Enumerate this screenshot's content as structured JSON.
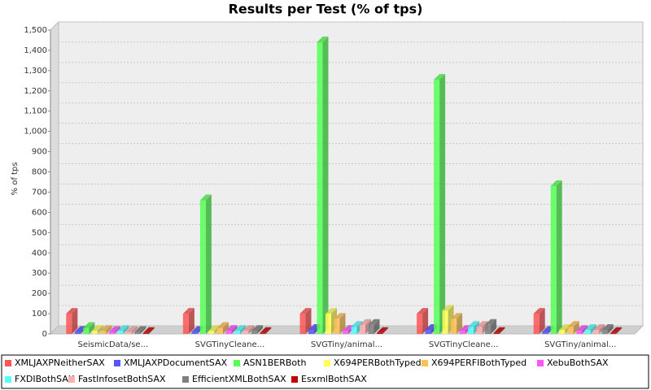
{
  "chart_data": {
    "type": "bar3d",
    "title": "Results per Test (% of tps)",
    "y_label": "% of tps",
    "categories": [
      "SeismicData/se...",
      "SVGTinyCleane...",
      "SVGTiny/animal...",
      "SVGTinyCleane...",
      "SVGTiny/animal..."
    ],
    "series": [
      {
        "name": "XMLJAXPNeitherSAX",
        "color": "#ff5555",
        "values": [
          100,
          100,
          100,
          100,
          100
        ]
      },
      {
        "name": "XMLJAXPDocumentSAX",
        "color": "#5555ff",
        "values": [
          10,
          10,
          20,
          20,
          10
        ]
      },
      {
        "name": "ASN1BERBoth",
        "color": "#55ff55",
        "values": [
          30,
          660,
          1440,
          1255,
          730
        ]
      },
      {
        "name": "X694PERBothTyped",
        "color": "#ffff55",
        "values": [
          15,
          15,
          100,
          115,
          20
        ]
      },
      {
        "name": "X694PERFIBothTyped",
        "color": "#ffc055",
        "values": [
          15,
          30,
          75,
          75,
          35
        ]
      },
      {
        "name": "XebuBothSAX",
        "color": "#ff55ff",
        "values": [
          10,
          15,
          15,
          15,
          15
        ]
      },
      {
        "name": "FXDIBothSAX",
        "color": "#55ffff",
        "values": [
          15,
          15,
          35,
          35,
          20
        ]
      },
      {
        "name": "FastInfosetBothSAX",
        "color": "#ffafaf",
        "values": [
          10,
          15,
          45,
          35,
          20
        ]
      },
      {
        "name": "EfficientXMLBothSAX",
        "color": "#808080",
        "values": [
          10,
          15,
          45,
          45,
          20
        ]
      },
      {
        "name": "EsxmlBothSAX",
        "color": "#c00000",
        "values": [
          5,
          5,
          5,
          5,
          5
        ]
      }
    ],
    "ylim": [
      0,
      1500
    ],
    "yticks": [
      0,
      100,
      200,
      300,
      400,
      500,
      600,
      700,
      800,
      900,
      {
        "value": 1000,
        "label": "1,000"
      },
      {
        "value": 1100,
        "label": "1,100"
      },
      {
        "value": 1200,
        "label": "1,200"
      },
      {
        "value": 1300,
        "label": "1,300"
      },
      {
        "value": 1400,
        "label": "1,400"
      },
      {
        "value": 1500,
        "label": "1,500"
      }
    ],
    "grid": true
  }
}
